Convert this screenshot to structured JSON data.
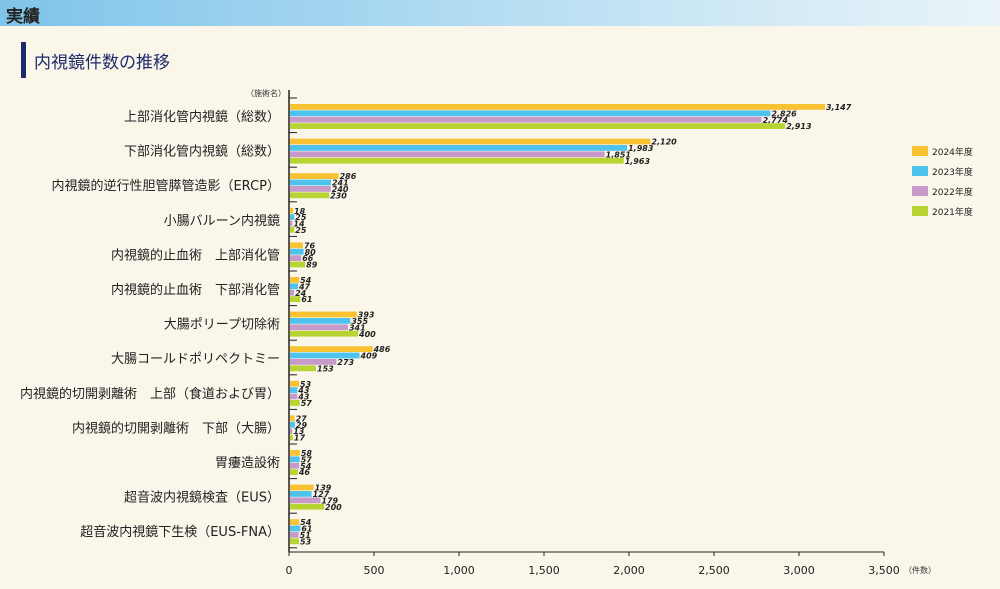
{
  "header": {
    "title": "実績"
  },
  "section": {
    "title": "内視鏡件数の推移"
  },
  "chart_data": {
    "type": "bar",
    "orientation": "horizontal",
    "title": "内視鏡件数の推移",
    "ylabel": "（施術名）",
    "xlabel": "（件数）",
    "xlim": [
      0,
      3500
    ],
    "xticks": [
      0,
      500,
      1000,
      1500,
      2000,
      2500,
      3000,
      3500
    ],
    "xtick_labels": [
      "0",
      "500",
      "1,000",
      "1,500",
      "2,000",
      "2,500",
      "3,000",
      "3,500"
    ],
    "categories": [
      "上部消化管内視鏡（総数）",
      "下部消化管内視鏡（総数）",
      "内視鏡的逆行性胆管膵管造影（ERCP）",
      "小腸バルーン内視鏡",
      "内視鏡的止血術　上部消化管",
      "内視鏡的止血術　下部消化管",
      "大腸ポリープ切除術",
      "大腸コールドポリペクトミー",
      "内視鏡的切開剥離術　上部（食道および胃）",
      "内視鏡的切開剥離術　下部（大腸）",
      "胃瘻造設術",
      "超音波内視鏡検査（EUS）",
      "超音波内視鏡下生検（EUS-FNA）"
    ],
    "series": [
      {
        "name": "2024年度",
        "color": "#f9c233",
        "values": [
          3147,
          2120,
          286,
          18,
          76,
          54,
          393,
          486,
          53,
          27,
          58,
          139,
          54
        ],
        "labels": [
          "3,147",
          "2,120",
          "286",
          "18",
          "76",
          "54",
          "393",
          "486",
          "53",
          "27",
          "58",
          "139",
          "54"
        ]
      },
      {
        "name": "2023年度",
        "color": "#4dc3ee",
        "values": [
          2826,
          1983,
          241,
          25,
          80,
          47,
          355,
          409,
          43,
          29,
          57,
          127,
          61
        ],
        "labels": [
          "2,826",
          "1,983",
          "241",
          "25",
          "80",
          "47",
          "355",
          "409",
          "43",
          "29",
          "57",
          "127",
          "61"
        ]
      },
      {
        "name": "2022年度",
        "color": "#c79ac9",
        "values": [
          2774,
          1851,
          240,
          14,
          66,
          24,
          341,
          273,
          43,
          13,
          54,
          179,
          51
        ],
        "labels": [
          "2,774",
          "1,851",
          "240",
          "14",
          "66",
          "24",
          "341",
          "273",
          "43",
          "13",
          "54",
          "179",
          "51"
        ]
      },
      {
        "name": "2021年度",
        "color": "#b8d432",
        "values": [
          2913,
          1963,
          230,
          25,
          89,
          61,
          400,
          153,
          57,
          17,
          46,
          200,
          53
        ],
        "labels": [
          "2,913",
          "1,963",
          "230",
          "25",
          "89",
          "61",
          "400",
          "153",
          "57",
          "17",
          "46",
          "200",
          "53"
        ]
      }
    ],
    "legend_position": "right"
  }
}
